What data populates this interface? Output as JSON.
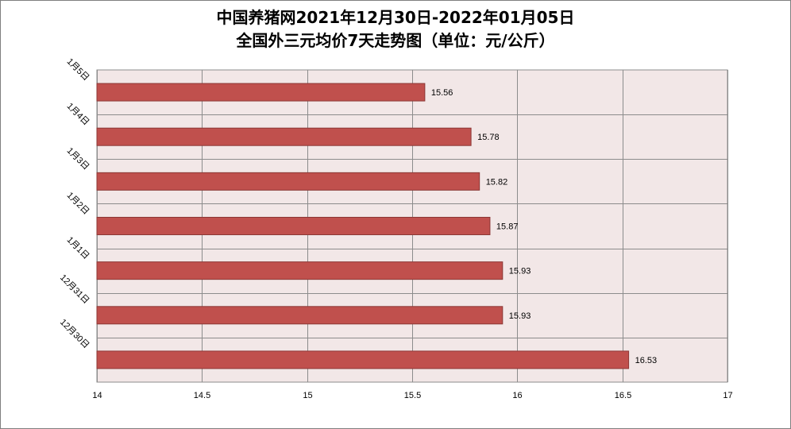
{
  "chart_data": {
    "type": "bar",
    "orientation": "horizontal",
    "title_line1": "中国养猪网2021年12月30日-2022年01月05日",
    "title_line2": "全国外三元均价7天走势图（单位：元/公斤）",
    "categories": [
      "12月30日",
      "12月31日",
      "1月1日",
      "1月2日",
      "1月3日",
      "1月4日",
      "1月5日"
    ],
    "values": [
      16.53,
      15.93,
      15.93,
      15.87,
      15.82,
      15.78,
      15.56
    ],
    "value_labels": [
      "16.53",
      "15.93",
      "15.93",
      "15.87",
      "15.82",
      "15.78",
      "15.56"
    ],
    "x_ticks": [
      "14",
      "14.5",
      "15",
      "15.5",
      "16",
      "16.5",
      "17"
    ],
    "xlim": [
      14,
      17
    ],
    "grid": true,
    "legend": "none",
    "bar_color": "#c0504d",
    "plot_bg": "#f2e7e7",
    "grid_color": "#8c8c8c"
  }
}
